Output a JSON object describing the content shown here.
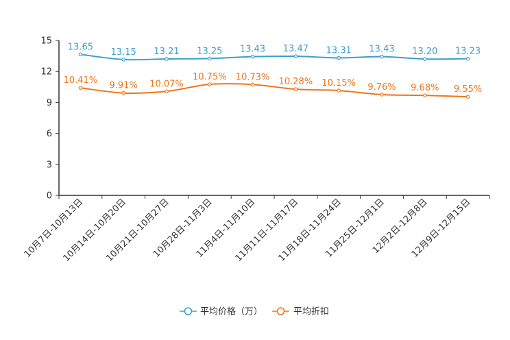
{
  "chart_data": {
    "type": "line",
    "categories": [
      "10月7日-10月13日",
      "10月14日-10月20日",
      "10月21日-10月27日",
      "10月28日-11月3日",
      "11月4日-11月10日",
      "11月11日-11月17日",
      "11月18日-11月24日",
      "11月25日-12月1日",
      "12月2日-12月8日",
      "12月9日-12月15日"
    ],
    "ylim": [
      0,
      15
    ],
    "yticks": [
      0,
      3,
      6,
      9,
      12,
      15
    ],
    "series": [
      {
        "name": "平均价格（万）",
        "color": "#3a9fd1",
        "values": [
          13.65,
          13.15,
          13.21,
          13.25,
          13.43,
          13.47,
          13.31,
          13.43,
          13.2,
          13.23
        ],
        "labels": [
          "13.65",
          "13.15",
          "13.21",
          "13.25",
          "13.43",
          "13.47",
          "13.31",
          "13.43",
          "13.20",
          "13.23"
        ]
      },
      {
        "name": "平均折扣",
        "color": "#f07418",
        "values": [
          10.41,
          9.91,
          10.07,
          10.75,
          10.73,
          10.28,
          10.15,
          9.76,
          9.68,
          9.55
        ],
        "labels": [
          "10.41%",
          "9.91%",
          "10.07%",
          "10.75%",
          "10.73%",
          "10.28%",
          "10.15%",
          "9.76%",
          "9.68%",
          "9.55%"
        ]
      }
    ]
  }
}
